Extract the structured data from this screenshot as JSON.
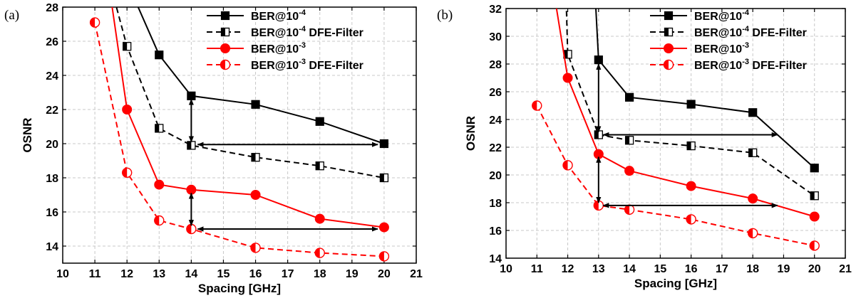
{
  "figure": {
    "panels": [
      "(a)",
      "(b)"
    ]
  },
  "chart_data": [
    {
      "type": "line",
      "panel": "(a)",
      "xlabel": "Spacing [GHz]",
      "ylabel": "OSNR",
      "xlim": [
        10,
        21
      ],
      "ylim": [
        13,
        28
      ],
      "xticks": [
        10,
        11,
        12,
        13,
        14,
        15,
        16,
        17,
        18,
        19,
        20,
        21
      ],
      "yticks": [
        14,
        16,
        18,
        20,
        22,
        24,
        26,
        28
      ],
      "grid": true,
      "legend_position": "top-right",
      "series": [
        {
          "name": "BER@10",
          "sup": "-4",
          "suffix": "",
          "color": "#000000",
          "dash": false,
          "marker": "square",
          "x": [
            11.4,
            12.3,
            13,
            14,
            16,
            18,
            20
          ],
          "y": [
            30.5,
            28.2,
            25.2,
            22.8,
            22.3,
            21.3,
            20.0
          ]
        },
        {
          "name": "BER@10",
          "sup": "-4",
          "suffix": " DFE-Filter",
          "color": "#000000",
          "dash": true,
          "marker": "half-square",
          "x": [
            11.6,
            12,
            13,
            14,
            16,
            18,
            20
          ],
          "y": [
            28.5,
            25.7,
            20.9,
            19.9,
            19.2,
            18.7,
            18.0
          ]
        },
        {
          "name": "BER@10",
          "sup": "-3",
          "suffix": "",
          "color": "#ff0000",
          "dash": false,
          "marker": "circle",
          "x": [
            11.5,
            12,
            13,
            14,
            16,
            18,
            20
          ],
          "y": [
            28.5,
            22.0,
            17.6,
            17.3,
            17.0,
            15.6,
            15.1
          ]
        },
        {
          "name": "BER@10",
          "sup": "-3",
          "suffix": " DFE-Filter",
          "color": "#ff0000",
          "dash": true,
          "marker": "half-circle",
          "x": [
            11,
            12,
            13,
            14,
            16,
            18,
            20
          ],
          "y": [
            27.1,
            18.3,
            15.5,
            15.0,
            13.9,
            13.6,
            13.4
          ]
        }
      ],
      "annotations": [
        {
          "type": "double-arrow",
          "from": [
            14,
            22.6
          ],
          "to": [
            14,
            20.1
          ]
        },
        {
          "type": "double-arrow",
          "from": [
            14.2,
            19.95
          ],
          "to": [
            19.8,
            19.95
          ]
        },
        {
          "type": "double-arrow",
          "from": [
            14,
            17.1
          ],
          "to": [
            14,
            15.2
          ]
        },
        {
          "type": "double-arrow",
          "from": [
            14.2,
            15.0
          ],
          "to": [
            19.8,
            15.0
          ]
        }
      ]
    },
    {
      "type": "line",
      "panel": "(b)",
      "xlabel": "Spacing [GHz]",
      "ylabel": "OSNR",
      "xlim": [
        10,
        21
      ],
      "ylim": [
        14,
        32
      ],
      "xticks": [
        10,
        11,
        12,
        13,
        14,
        15,
        16,
        17,
        18,
        19,
        20,
        21
      ],
      "yticks": [
        14,
        16,
        18,
        20,
        22,
        24,
        26,
        28,
        30,
        32
      ],
      "grid": true,
      "legend_position": "top-right",
      "series": [
        {
          "name": "BER@10",
          "sup": "-4",
          "suffix": "",
          "color": "#000000",
          "dash": false,
          "marker": "square",
          "x": [
            12.9,
            13,
            14,
            16,
            18,
            20
          ],
          "y": [
            32.5,
            28.3,
            25.6,
            25.1,
            24.5,
            20.5
          ]
        },
        {
          "name": "BER@10",
          "sup": "-4",
          "suffix": " DFE-Filter",
          "color": "#000000",
          "dash": true,
          "marker": "half-square",
          "x": [
            11.95,
            12,
            13,
            14,
            16,
            18,
            20
          ],
          "y": [
            32.5,
            28.7,
            22.9,
            22.5,
            22.1,
            21.6,
            18.5
          ]
        },
        {
          "name": "BER@10",
          "sup": "-3",
          "suffix": "",
          "color": "#ff0000",
          "dash": false,
          "marker": "circle",
          "x": [
            11.6,
            12,
            13,
            14,
            16,
            18,
            20
          ],
          "y": [
            32.5,
            27.0,
            21.5,
            20.3,
            19.2,
            18.3,
            17.0
          ]
        },
        {
          "name": "BER@10",
          "sup": "-3",
          "suffix": " DFE-Filter",
          "color": "#ff0000",
          "dash": true,
          "marker": "half-circle",
          "x": [
            11,
            12,
            13,
            14,
            16,
            18,
            20
          ],
          "y": [
            25.0,
            20.7,
            17.8,
            17.5,
            16.8,
            15.8,
            14.9
          ]
        }
      ],
      "annotations": [
        {
          "type": "double-arrow",
          "from": [
            13,
            28.0
          ],
          "to": [
            13,
            23.1
          ]
        },
        {
          "type": "double-arrow",
          "from": [
            13.15,
            22.9
          ],
          "to": [
            18.8,
            22.9
          ]
        },
        {
          "type": "double-arrow",
          "from": [
            13,
            21.3
          ],
          "to": [
            13,
            18.0
          ]
        },
        {
          "type": "double-arrow",
          "from": [
            13.15,
            17.8
          ],
          "to": [
            18.8,
            17.8
          ]
        }
      ]
    }
  ]
}
